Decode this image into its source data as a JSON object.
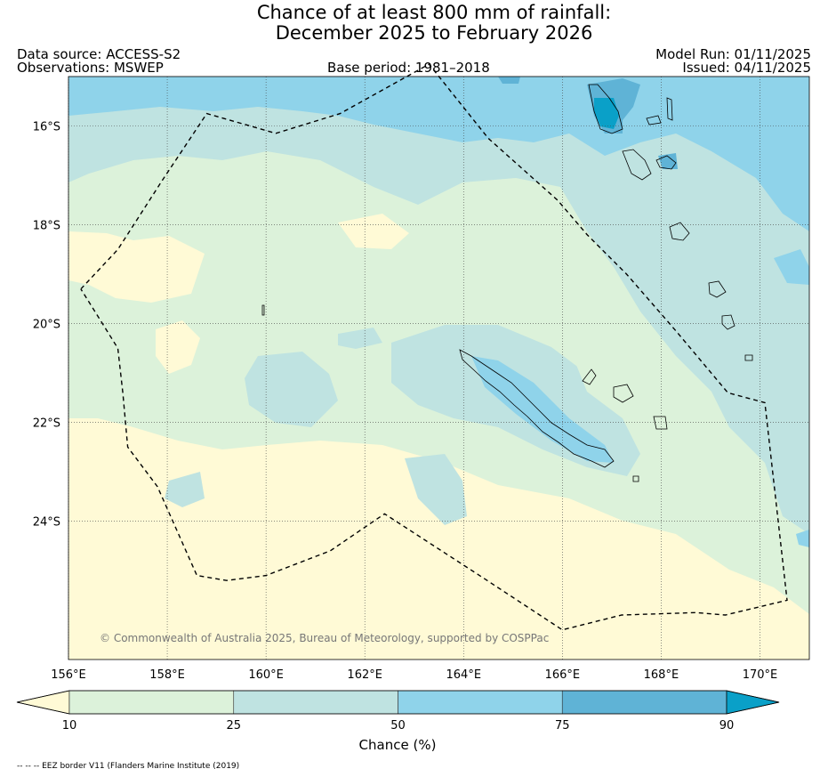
{
  "title": {
    "line1": "Chance of at least 800 mm of rainfall:",
    "line2": "December 2025 to February 2026"
  },
  "meta": {
    "data_source": "Data source: ACCESS-S2",
    "observations": "Observations: MSWEP",
    "base_period": "Base period: 1981–2018",
    "model_run": "Model Run: 01/11/2025",
    "issued": "Issued: 04/11/2025"
  },
  "map": {
    "lon_range": [
      156,
      171
    ],
    "lat_range": [
      -26.8,
      -15.0
    ],
    "lon_ticks": [
      {
        "lon": 156,
        "label": "156°E"
      },
      {
        "lon": 158,
        "label": "158°E"
      },
      {
        "lon": 160,
        "label": "160°E"
      },
      {
        "lon": 162,
        "label": "162°E"
      },
      {
        "lon": 164,
        "label": "164°E"
      },
      {
        "lon": 166,
        "label": "166°E"
      },
      {
        "lon": 168,
        "label": "168°E"
      },
      {
        "lon": 170,
        "label": "170°E"
      }
    ],
    "lat_ticks": [
      {
        "lat": -16,
        "label": "16°S"
      },
      {
        "lat": -18,
        "label": "18°S"
      },
      {
        "lat": -20,
        "label": "20°S"
      },
      {
        "lat": -22,
        "label": "22°S"
      },
      {
        "lat": -24,
        "label": "24°S"
      }
    ],
    "copyright": "© Commonwealth of Australia 2025, Bureau of Meteorology, supported by COSPPac",
    "eez_border": [
      [
        156.25,
        -19.3
      ],
      [
        157.0,
        -18.5
      ],
      [
        157.9,
        -17.1
      ],
      [
        158.8,
        -15.75
      ],
      [
        160.2,
        -16.15
      ],
      [
        161.5,
        -15.75
      ],
      [
        163.3,
        -14.75
      ],
      [
        164.5,
        -16.25
      ],
      [
        165.9,
        -17.5
      ],
      [
        166.5,
        -18.2
      ],
      [
        167.3,
        -19.0
      ],
      [
        168.3,
        -20.15
      ],
      [
        169.35,
        -21.4
      ],
      [
        170.1,
        -21.6
      ],
      [
        170.55,
        -25.6
      ],
      [
        169.3,
        -25.9
      ],
      [
        168.7,
        -25.85
      ],
      [
        167.2,
        -25.9
      ],
      [
        166.0,
        -26.2
      ],
      [
        164.4,
        -25.15
      ],
      [
        162.4,
        -23.85
      ],
      [
        161.3,
        -24.6
      ],
      [
        160.0,
        -25.1
      ],
      [
        159.2,
        -25.2
      ],
      [
        158.6,
        -25.1
      ],
      [
        157.8,
        -23.3
      ],
      [
        157.2,
        -22.5
      ],
      [
        157.1,
        -21.4
      ],
      [
        157.0,
        -20.5
      ],
      [
        156.25,
        -19.3
      ]
    ],
    "band_colors": [
      "#fffad6",
      "#dcf2da",
      "#bfe3e1",
      "#8fd3ea",
      "#5fb3d6",
      "#0aa0c8"
    ]
  },
  "colorbar": {
    "label": "Chance (%)",
    "ticks": [
      {
        "value": 10,
        "label": "10"
      },
      {
        "value": 25,
        "label": "25"
      },
      {
        "value": 50,
        "label": "50"
      },
      {
        "value": 75,
        "label": "75"
      },
      {
        "value": 90,
        "label": "90"
      }
    ],
    "colors": [
      "#fffad6",
      "#dcf2da",
      "#bfe3e1",
      "#8fd3ea",
      "#5fb3d6",
      "#0aa0c8"
    ]
  },
  "footnote": "-- -- -- EEZ border V11 (Flanders Marine Institute (2019)"
}
